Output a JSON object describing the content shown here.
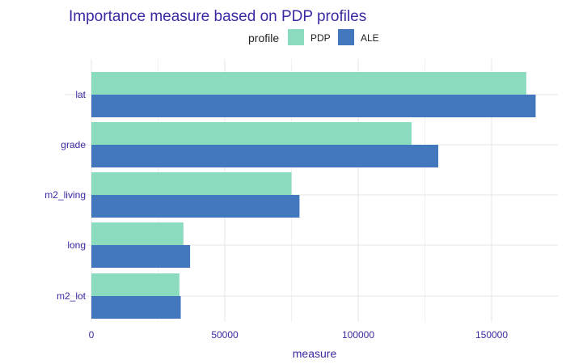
{
  "chart_data": {
    "type": "bar",
    "orientation": "horizontal",
    "title": "Importance measure based on PDP profiles",
    "xlabel": "measure",
    "ylabel": "",
    "categories": [
      "lat",
      "grade",
      "m2_living",
      "long",
      "m2_lot"
    ],
    "series": [
      {
        "name": "PDP",
        "color": "#8bdcbe",
        "values": [
          163000,
          120000,
          75000,
          34500,
          33000
        ]
      },
      {
        "name": "ALE",
        "color": "#4378bf",
        "values": [
          166500,
          130000,
          78000,
          37000,
          33500
        ]
      }
    ],
    "xlim": [
      0,
      172000
    ],
    "xticks": [
      0,
      50000,
      100000,
      150000
    ],
    "xtick_labels": [
      "0",
      "50000",
      "100000",
      "150000"
    ],
    "grid": true,
    "legend": {
      "title": "profile",
      "position": "top",
      "entries": [
        "PDP",
        "ALE"
      ]
    }
  }
}
